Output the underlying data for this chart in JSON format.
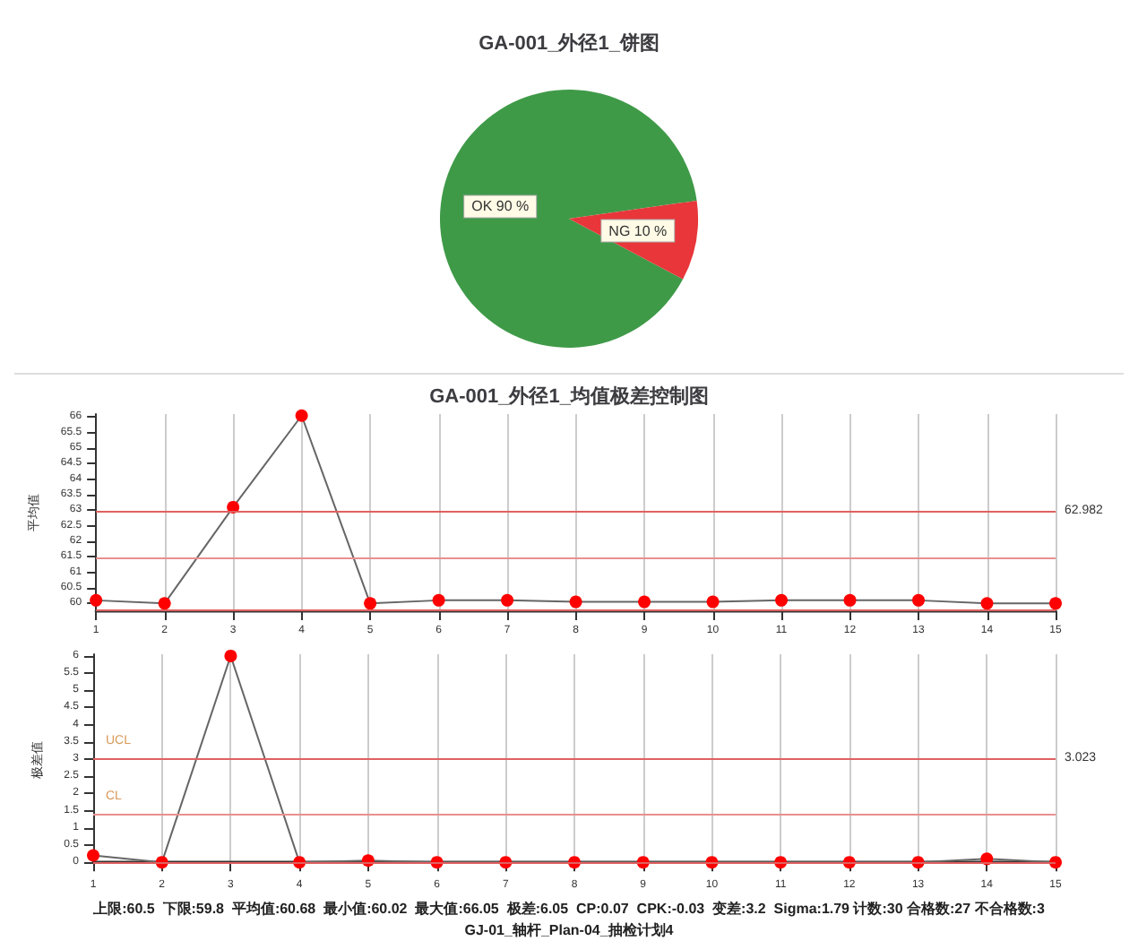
{
  "chart_data": [
    {
      "type": "pie",
      "title": "GA-001_外径1_饼图",
      "categories": [
        "OK",
        "NG"
      ],
      "values": [
        90,
        10
      ],
      "colors": [
        "#3f9a48",
        "#e8363a"
      ],
      "value_labels": [
        "90 %",
        "10 %"
      ]
    },
    {
      "type": "line",
      "title": "GA-001_外径1_均值极差控制图",
      "ylabel": "平均值",
      "x": [
        1,
        2,
        3,
        4,
        5,
        6,
        7,
        8,
        9,
        10,
        11,
        12,
        13,
        14,
        15
      ],
      "series": [
        {
          "color": "#ff0000",
          "values": [
            60.1,
            60.0,
            63.1,
            66.05,
            60.0,
            60.1,
            60.1,
            60.05,
            60.05,
            60.05,
            60.1,
            60.1,
            60.1,
            60.0,
            60.0
          ]
        }
      ],
      "xlim": [
        1,
        15
      ],
      "xticks": [
        1,
        2,
        3,
        4,
        5,
        6,
        7,
        8,
        9,
        10,
        11,
        12,
        13,
        14,
        15
      ],
      "ylim": [
        59.75,
        66.1
      ],
      "yticks": [
        60,
        60.5,
        61,
        61.5,
        62,
        62.5,
        63,
        63.5,
        64,
        64.5,
        65,
        65.5,
        66
      ],
      "grid": "x",
      "marker": "circle",
      "line_style": "solid",
      "ref_lines": [
        {
          "axis": "y",
          "value": 62.982,
          "label": "62.982",
          "color": "#e06060"
        },
        {
          "axis": "y",
          "value": 61.48,
          "color": "#e89090"
        },
        {
          "axis": "y",
          "value": 59.8,
          "color": "#e06060"
        }
      ]
    },
    {
      "type": "line",
      "ylabel": "极差值",
      "x": [
        1,
        2,
        3,
        4,
        5,
        6,
        7,
        8,
        9,
        10,
        11,
        12,
        13,
        14,
        15
      ],
      "series": [
        {
          "color": "#ff0000",
          "values": [
            0.2,
            0,
            6,
            0,
            0.05,
            0,
            0,
            0,
            0,
            0,
            0,
            0,
            0,
            0.1,
            0
          ]
        }
      ],
      "xlim": [
        1,
        15
      ],
      "xticks": [
        1,
        2,
        3,
        4,
        5,
        6,
        7,
        8,
        9,
        10,
        11,
        12,
        13,
        14,
        15
      ],
      "ylim": [
        -0.1,
        6.05
      ],
      "yticks": [
        0,
        0.5,
        1,
        1.5,
        2,
        2.5,
        3,
        3.5,
        4,
        4.5,
        5,
        5.5,
        6
      ],
      "grid": "x",
      "marker": "circle",
      "line_style": "solid",
      "ref_lines": [
        {
          "axis": "y",
          "value": 3.023,
          "label": "3.023",
          "color": "#e06060"
        },
        {
          "axis": "y",
          "value": 1.4,
          "color": "#e89090"
        },
        {
          "axis": "y",
          "value": 0,
          "color": "#e06060"
        }
      ],
      "annotations": [
        {
          "text": "UCL",
          "x": 1,
          "y": 3.023
        },
        {
          "text": "CL",
          "x": 1,
          "y": 1.4
        },
        "上限:60.5  下限:59.8  平均值:60.68  最小值:60.02  最大值:66.05  极差:6.05  CP:0.07  CPK:-0.03  变差:3.2  Sigma:1.79 计数:30 合格数:27 不合格数:3",
        "GJ-01_轴杆_Plan-04_抽检计划4"
      ]
    }
  ]
}
